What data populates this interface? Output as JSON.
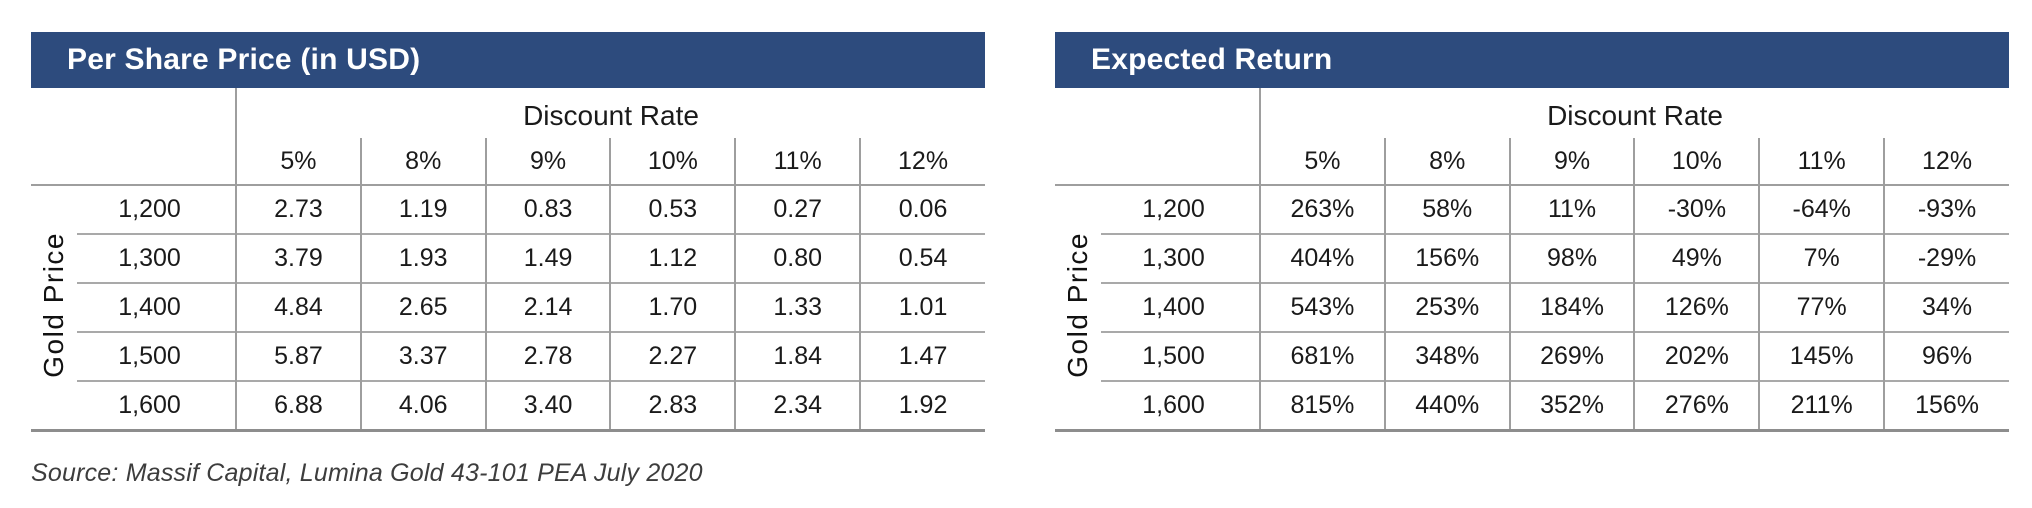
{
  "page": {
    "source_note": "Source: Massif Capital, Lumina Gold 43-101 PEA July 2020"
  },
  "colors": {
    "header_bg": "#2d4b7d",
    "header_text": "#ffffff",
    "grid_line": "#9e9e9e",
    "grid_line_row": "#a9a9a9",
    "grid_line_bottom": "#8d8d8d"
  },
  "tables": [
    {
      "title": "Per Share Price (in USD)",
      "col_group_label": "Discount Rate",
      "row_group_label": "Gold Price",
      "col_headers": [
        "5%",
        "8%",
        "9%",
        "10%",
        "11%",
        "12%"
      ],
      "row_headers": [
        "1,200",
        "1,300",
        "1,400",
        "1,500",
        "1,600"
      ],
      "rows": [
        [
          "2.73",
          "1.19",
          "0.83",
          "0.53",
          "0.27",
          "0.06"
        ],
        [
          "3.79",
          "1.93",
          "1.49",
          "1.12",
          "0.80",
          "0.54"
        ],
        [
          "4.84",
          "2.65",
          "2.14",
          "1.70",
          "1.33",
          "1.01"
        ],
        [
          "5.87",
          "3.37",
          "2.78",
          "2.27",
          "1.84",
          "1.47"
        ],
        [
          "6.88",
          "4.06",
          "3.40",
          "2.83",
          "2.34",
          "1.92"
        ]
      ]
    },
    {
      "title": "Expected Return",
      "col_group_label": "Discount Rate",
      "row_group_label": "Gold Price",
      "col_headers": [
        "5%",
        "8%",
        "9%",
        "10%",
        "11%",
        "12%"
      ],
      "row_headers": [
        "1,200",
        "1,300",
        "1,400",
        "1,500",
        "1,600"
      ],
      "rows": [
        [
          "263%",
          "58%",
          "11%",
          "-30%",
          "-64%",
          "-93%"
        ],
        [
          "404%",
          "156%",
          "98%",
          "49%",
          "7%",
          "-29%"
        ],
        [
          "543%",
          "253%",
          "184%",
          "126%",
          "77%",
          "34%"
        ],
        [
          "681%",
          "348%",
          "269%",
          "202%",
          "145%",
          "96%"
        ],
        [
          "815%",
          "440%",
          "352%",
          "276%",
          "211%",
          "156%"
        ]
      ]
    }
  ]
}
